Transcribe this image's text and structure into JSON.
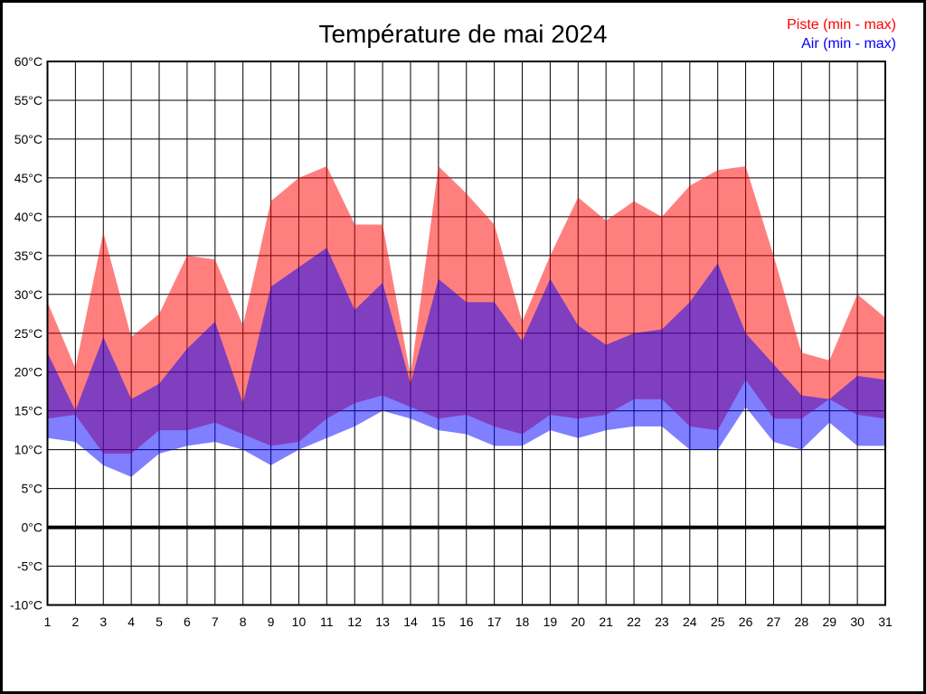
{
  "title": "Température de mai 2024",
  "legend": {
    "items": [
      {
        "label": "Piste (min - max)",
        "color": "#ff0000"
      },
      {
        "label": "Air (min - max)",
        "color": "#0000ff"
      }
    ],
    "position": "top-right"
  },
  "chart_data": {
    "type": "area",
    "title": "Température de mai 2024",
    "x": [
      1,
      2,
      3,
      4,
      5,
      6,
      7,
      8,
      9,
      10,
      11,
      12,
      13,
      14,
      15,
      16,
      17,
      18,
      19,
      20,
      21,
      22,
      23,
      24,
      25,
      26,
      27,
      28,
      29,
      30,
      31
    ],
    "x_tick_labels": [
      "1",
      "2",
      "3",
      "4",
      "5",
      "6",
      "7",
      "8",
      "9",
      "10",
      "11",
      "12",
      "13",
      "14",
      "15",
      "16",
      "17",
      "18",
      "19",
      "20",
      "21",
      "22",
      "23",
      "24",
      "25",
      "26",
      "27",
      "28",
      "29",
      "30",
      "31"
    ],
    "y_unit": "°C",
    "ylim": [
      -10,
      60
    ],
    "ytick_step": 5,
    "y_tick_labels": [
      "60°C",
      "55°C",
      "50°C",
      "45°C",
      "40°C",
      "35°C",
      "30°C",
      "25°C",
      "20°C",
      "15°C",
      "10°C",
      "5°C",
      "0°C",
      "-5°C",
      "-10°C"
    ],
    "grid": true,
    "zero_line_at": 0,
    "legend_position": "top-right",
    "series": [
      {
        "name": "Piste (min - max)",
        "fill": "rgba(255,0,0,0.5)",
        "min": [
          14,
          14.5,
          9.5,
          9.5,
          12.5,
          12.5,
          13.5,
          12,
          10.5,
          11,
          14,
          16,
          17,
          15.5,
          14,
          14.5,
          13,
          12,
          14.5,
          14,
          14.5,
          16.5,
          16.5,
          13,
          12.5,
          19,
          14,
          14,
          16.5,
          14.5,
          14
        ],
        "max": [
          29,
          20.5,
          38,
          24.5,
          27.5,
          35,
          34.5,
          26,
          42,
          45,
          46.5,
          39,
          39,
          19.5,
          46.5,
          43,
          39,
          26.5,
          35,
          42.5,
          39.5,
          42,
          40,
          44,
          46,
          46.5,
          35,
          22.5,
          21.5,
          30,
          27
        ]
      },
      {
        "name": "Air (min - max)",
        "fill": "rgba(0,0,255,0.5)",
        "min": [
          11.5,
          11,
          8,
          6.5,
          9.5,
          10.5,
          11,
          10,
          8,
          10,
          11.5,
          13,
          15,
          14,
          12.5,
          12,
          10.5,
          10.5,
          12.5,
          11.5,
          12.5,
          13,
          13,
          10,
          10,
          15.5,
          11,
          10,
          13.5,
          10.5,
          10.5
        ],
        "max": [
          22.5,
          15,
          24.5,
          16.5,
          18.5,
          23,
          26.5,
          16,
          31,
          33.5,
          36,
          28,
          31.5,
          18.5,
          32,
          29,
          29,
          24,
          32,
          26,
          23.5,
          25,
          25.5,
          29,
          34,
          25,
          21,
          17,
          16.5,
          19.5,
          19
        ]
      }
    ]
  }
}
